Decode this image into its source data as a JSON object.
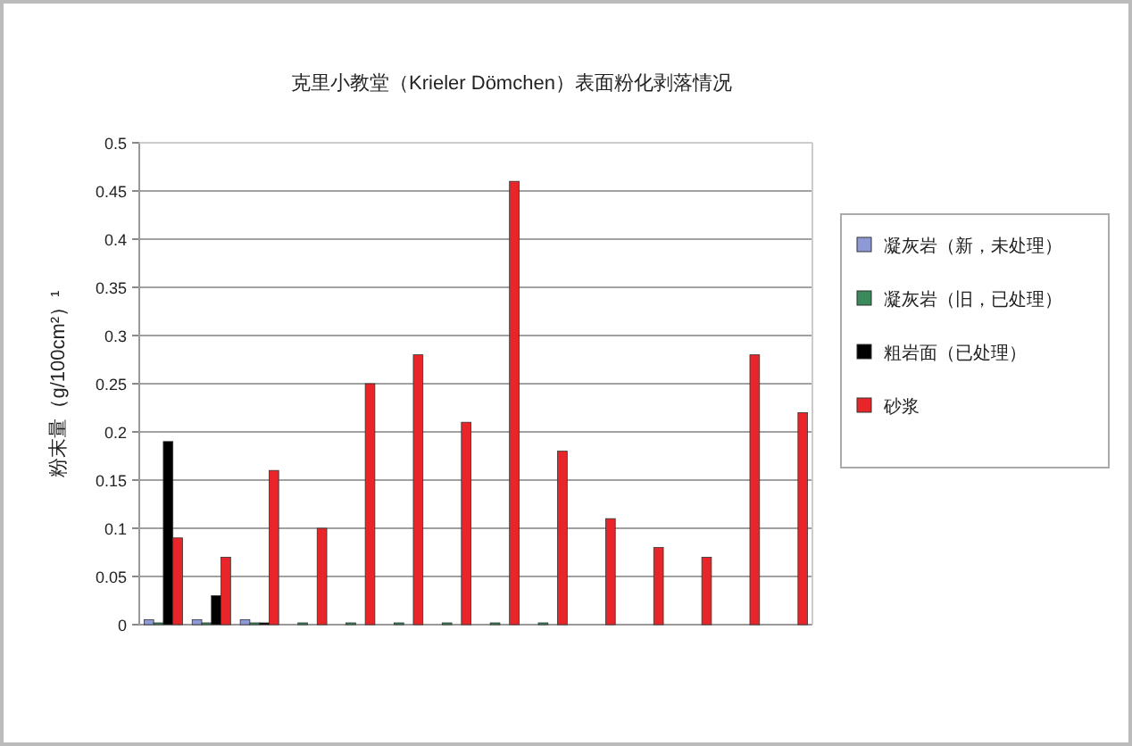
{
  "chart_data": {
    "type": "bar",
    "title": "克里小教堂（Krieler Dömchen）表面粉化剥落情况",
    "ylabel": "粉末量（g/100cm²）¹",
    "categories": [
      null,
      null,
      null,
      null,
      null,
      null,
      null,
      null,
      null,
      null,
      null,
      null,
      null,
      null
    ],
    "series": [
      {
        "name": "凝灰岩（新，未处理）",
        "color": "#8e9ad6",
        "values": [
          0.005,
          0.005,
          0.005,
          null,
          null,
          null,
          null,
          null,
          null,
          null,
          null,
          null,
          null,
          null
        ]
      },
      {
        "name": "凝灰岩（旧，已处理）",
        "color": "#3a8a5c",
        "values": [
          0,
          0,
          0,
          0,
          0,
          0,
          0,
          0,
          0,
          null,
          null,
          null,
          null,
          null
        ]
      },
      {
        "name": "粗岩面（已处理）",
        "color": "#000000",
        "values": [
          0.19,
          0.03,
          0,
          null,
          null,
          null,
          null,
          null,
          null,
          null,
          null,
          null,
          null,
          null
        ]
      },
      {
        "name": "砂浆",
        "color": "#e8262a",
        "values": [
          0.09,
          0.07,
          0.16,
          0.1,
          0.25,
          0.28,
          0.21,
          0.46,
          0.18,
          0.11,
          0.08,
          0.07,
          0.28,
          0.22
        ]
      }
    ],
    "ylim": [
      0,
      0.5
    ],
    "yticks": [
      0,
      0.05,
      0.1,
      0.15,
      0.2,
      0.25,
      0.3,
      0.35,
      0.4,
      0.45,
      0.5
    ],
    "grid": true,
    "legend": "right"
  }
}
